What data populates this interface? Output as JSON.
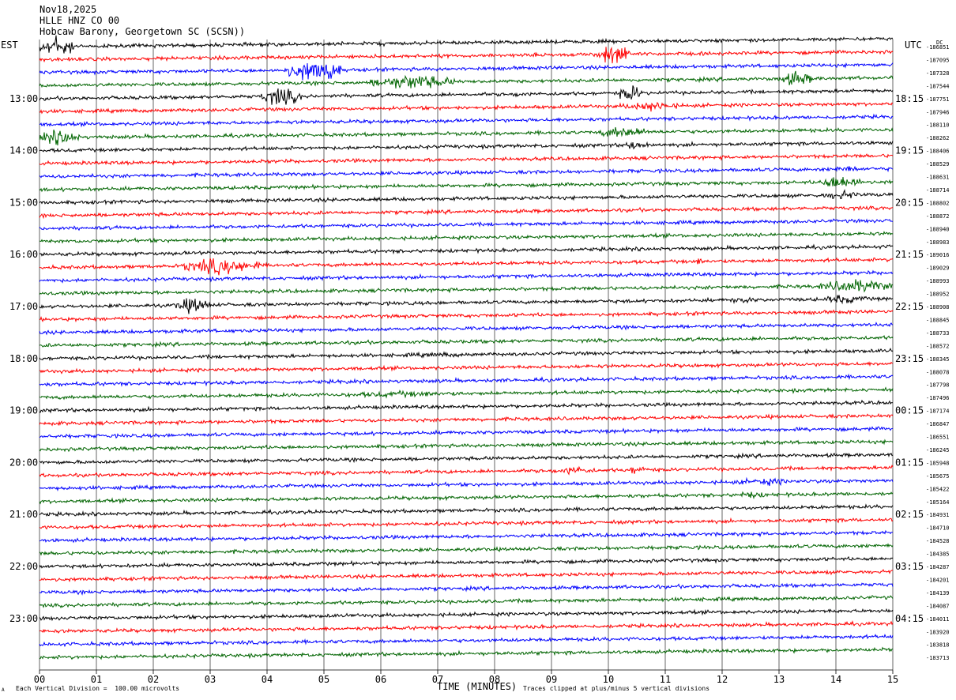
{
  "header": {
    "date": "Nov18,2025",
    "channel": "HLLE HNZ CO 00",
    "station": "Hobcaw Barony, Georgetown SC (SCSN))"
  },
  "timezones": {
    "left": "EST",
    "right": "UTC",
    "dc_label": "DC"
  },
  "footer": {
    "scale_note": "Each Vertical Division =  100.00 microvolts",
    "clip_note": "Traces clipped at plus/minus 5 vertical divisions",
    "corner_mark": "A"
  },
  "chart_data": {
    "type": "helicorder",
    "xlabel": "TIME (MINUTES)",
    "x_ticks": [
      "00",
      "01",
      "02",
      "03",
      "04",
      "05",
      "06",
      "07",
      "08",
      "09",
      "10",
      "11",
      "12",
      "13",
      "14",
      "15"
    ],
    "xlim": [
      0,
      15
    ],
    "minutes_per_line": 15,
    "trace_colors": [
      "#000000",
      "#ff0000",
      "#0000ff",
      "#006400"
    ],
    "left_hour_labels": [
      {
        "line": 4,
        "text": "13:00"
      },
      {
        "line": 8,
        "text": "14:00"
      },
      {
        "line": 12,
        "text": "15:00"
      },
      {
        "line": 16,
        "text": "16:00"
      },
      {
        "line": 20,
        "text": "17:00"
      },
      {
        "line": 24,
        "text": "18:00"
      },
      {
        "line": 28,
        "text": "19:00"
      },
      {
        "line": 32,
        "text": "20:00"
      },
      {
        "line": 36,
        "text": "21:00"
      },
      {
        "line": 40,
        "text": "22:00"
      },
      {
        "line": 44,
        "text": "23:00"
      }
    ],
    "right_hour_labels": [
      {
        "line": 4,
        "text": "18:15"
      },
      {
        "line": 8,
        "text": "19:15"
      },
      {
        "line": 12,
        "text": "20:15"
      },
      {
        "line": 16,
        "text": "21:15"
      },
      {
        "line": 20,
        "text": "22:15"
      },
      {
        "line": 24,
        "text": "23:15"
      },
      {
        "line": 28,
        "text": "00:15"
      },
      {
        "line": 32,
        "text": "01:15"
      },
      {
        "line": 36,
        "text": "02:15"
      },
      {
        "line": 40,
        "text": "03:15"
      },
      {
        "line": 44,
        "text": "04:15"
      }
    ],
    "dc_offsets": [
      "-186851",
      "-187095",
      "-187328",
      "-187544",
      "-187751",
      "-187946",
      "-188110",
      "-188262",
      "-188406",
      "-188529",
      "-188631",
      "-188714",
      "-188802",
      "-188872",
      "-188940",
      "-188983",
      "-189016",
      "-189029",
      "-188993",
      "-188952",
      "-188908",
      "-188845",
      "-188733",
      "-188572",
      "-188345",
      "-188078",
      "-187798",
      "-187496",
      "-187174",
      "-186847",
      "-186551",
      "-186245",
      "-185948",
      "-185675",
      "-185422",
      "-185164",
      "-184931",
      "-184710",
      "-184528",
      "-184385",
      "-184287",
      "-184201",
      "-184139",
      "-184087",
      "-184011",
      "-183920",
      "-183818",
      "-183713"
    ],
    "events": [
      {
        "line": 0,
        "start_min": 0.0,
        "end_min": 0.6,
        "amp": 4.0
      },
      {
        "line": 0,
        "start_min": 5.7,
        "end_min": 6.3,
        "amp": 0.8
      },
      {
        "line": 1,
        "start_min": 9.8,
        "end_min": 10.4,
        "amp": 3.5
      },
      {
        "line": 2,
        "start_min": 4.3,
        "end_min": 5.3,
        "amp": 3.5
      },
      {
        "line": 2,
        "start_min": 5.0,
        "end_min": 5.2,
        "amp": 5.0
      },
      {
        "line": 3,
        "start_min": 5.8,
        "end_min": 7.3,
        "amp": 2.5
      },
      {
        "line": 3,
        "start_min": 13.0,
        "end_min": 13.6,
        "amp": 2.5
      },
      {
        "line": 4,
        "start_min": 3.9,
        "end_min": 4.6,
        "amp": 3.0
      },
      {
        "line": 4,
        "start_min": 8.3,
        "end_min": 8.6,
        "amp": 1.2
      },
      {
        "line": 4,
        "start_min": 10.2,
        "end_min": 10.6,
        "amp": 3.0
      },
      {
        "line": 5,
        "start_min": 10.2,
        "end_min": 11.3,
        "amp": 1.6
      },
      {
        "line": 7,
        "start_min": 0.0,
        "end_min": 0.7,
        "amp": 2.5
      },
      {
        "line": 7,
        "start_min": 9.8,
        "end_min": 10.7,
        "amp": 2.0
      },
      {
        "line": 8,
        "start_min": 10.2,
        "end_min": 10.8,
        "amp": 1.6
      },
      {
        "line": 10,
        "start_min": 13.9,
        "end_min": 14.4,
        "amp": 1.4
      },
      {
        "line": 11,
        "start_min": 13.7,
        "end_min": 14.5,
        "amp": 2.5
      },
      {
        "line": 12,
        "start_min": 13.7,
        "end_min": 14.5,
        "amp": 1.5
      },
      {
        "line": 17,
        "start_min": 2.5,
        "end_min": 3.9,
        "amp": 2.8
      },
      {
        "line": 17,
        "start_min": 11.5,
        "end_min": 11.7,
        "amp": 1.2
      },
      {
        "line": 19,
        "start_min": 13.7,
        "end_min": 15.0,
        "amp": 2.2
      },
      {
        "line": 20,
        "start_min": 2.4,
        "end_min": 3.0,
        "amp": 2.6
      },
      {
        "line": 20,
        "start_min": 12.1,
        "end_min": 12.6,
        "amp": 1.3
      },
      {
        "line": 20,
        "start_min": 13.7,
        "end_min": 14.6,
        "amp": 1.5
      },
      {
        "line": 24,
        "start_min": 5.8,
        "end_min": 8.3,
        "amp": 0.8
      },
      {
        "line": 26,
        "start_min": 4.8,
        "end_min": 5.8,
        "amp": 0.7
      },
      {
        "line": 27,
        "start_min": 4.8,
        "end_min": 7.9,
        "amp": 1.0
      },
      {
        "line": 31,
        "start_min": 6.8,
        "end_min": 7.1,
        "amp": 0.6
      },
      {
        "line": 33,
        "start_min": 9.0,
        "end_min": 9.8,
        "amp": 1.4
      },
      {
        "line": 33,
        "start_min": 10.3,
        "end_min": 10.7,
        "amp": 1.6
      },
      {
        "line": 34,
        "start_min": 12.1,
        "end_min": 13.4,
        "amp": 1.2
      },
      {
        "line": 35,
        "start_min": 12.1,
        "end_min": 12.9,
        "amp": 1.1
      },
      {
        "line": 46,
        "start_min": 3.8,
        "end_min": 4.2,
        "amp": 0.7
      }
    ]
  }
}
